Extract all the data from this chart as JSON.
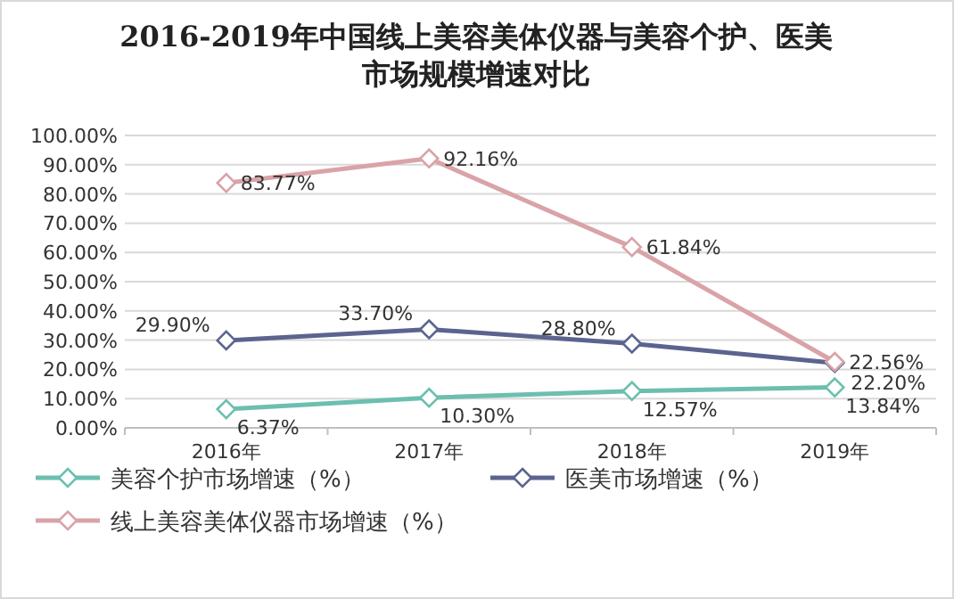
{
  "chart_data": {
    "type": "line",
    "title": "2016-2019年中国线上美容美体仪器与美容个护、医美市场规模增速对比",
    "categories": [
      "2016年",
      "2017年",
      "2018年",
      "2019年"
    ],
    "series": [
      {
        "name": "美容个护市场增速（%）",
        "color": "#6cbfae",
        "values": [
          6.37,
          10.3,
          12.57,
          13.84
        ],
        "value_labels": [
          "6.37%",
          "10.30%",
          "12.57%",
          "13.84%"
        ]
      },
      {
        "name": "医美市场增速（%）",
        "color": "#5b648f",
        "values": [
          29.9,
          33.7,
          28.8,
          22.2
        ],
        "value_labels": [
          "29.90%",
          "33.70%",
          "28.80%",
          "22.20%"
        ]
      },
      {
        "name": "线上美容美体仪器市场增速（%）",
        "color": "#d9a3a8",
        "values": [
          83.77,
          92.16,
          61.84,
          22.56
        ],
        "value_labels": [
          "83.77%",
          "92.16%",
          "61.84%",
          "22.56%"
        ]
      }
    ],
    "ylim": [
      0,
      100
    ],
    "yticks": [
      {
        "value": 0,
        "label": "0.00%"
      },
      {
        "value": 10,
        "label": "10.00%"
      },
      {
        "value": 20,
        "label": "20.00%"
      },
      {
        "value": 30,
        "label": "30.00%"
      },
      {
        "value": 40,
        "label": "40.00%"
      },
      {
        "value": 50,
        "label": "50.00%"
      },
      {
        "value": 60,
        "label": "60.00%"
      },
      {
        "value": 70,
        "label": "70.00%"
      },
      {
        "value": 80,
        "label": "80.00%"
      },
      {
        "value": 90,
        "label": "90.00%"
      },
      {
        "value": 100,
        "label": "100.00%"
      }
    ],
    "grid": "y",
    "legend": "bottom",
    "marker": "diamond",
    "line_style": "solid"
  }
}
